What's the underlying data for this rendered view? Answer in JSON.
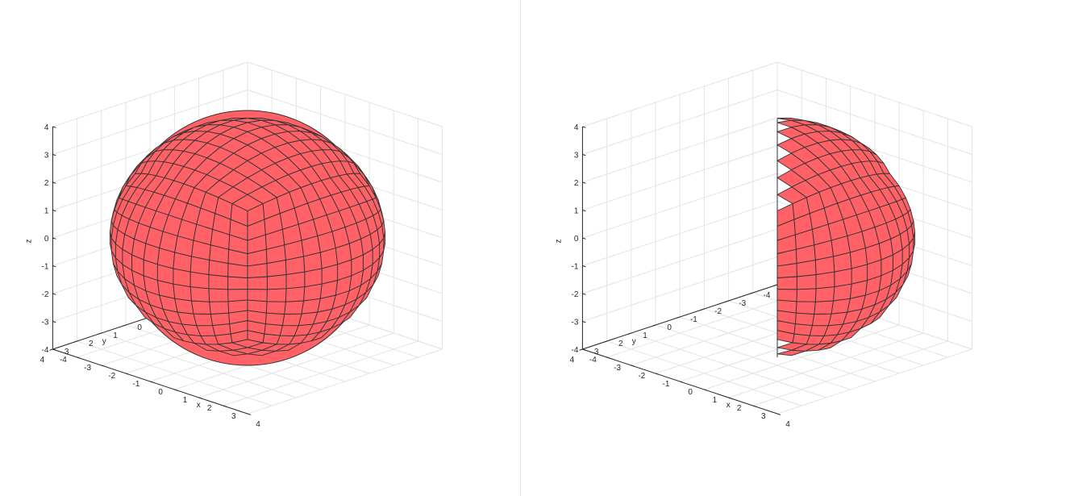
{
  "chart_data": [
    {
      "type": "surface3d",
      "id": "full-sphere",
      "xlabel": "x",
      "ylabel": "y",
      "zlabel": "z",
      "xlim": [
        -4,
        4
      ],
      "ylim": [
        -4,
        4
      ],
      "zlim": [
        -4,
        4
      ],
      "xticks": [
        "-4",
        "-3",
        "-2",
        "-1",
        "0",
        "1",
        "2",
        "3",
        "4"
      ],
      "yticks": [
        "-4",
        "-3",
        "-2",
        "-1",
        "0",
        "1",
        "2",
        "3",
        "4"
      ],
      "zticks": [
        "-4",
        "-3",
        "-2",
        "-1",
        "0",
        "1",
        "2",
        "3",
        "4"
      ],
      "grid": true,
      "shape": "sphere",
      "radius": 4,
      "face_color": "#ff6166",
      "edge_color": "#333333"
    },
    {
      "type": "surface3d",
      "id": "half-sphere-section",
      "xlabel": "x",
      "ylabel": "y",
      "zlabel": "z",
      "xlim": [
        -4,
        4
      ],
      "ylim": [
        -4,
        4
      ],
      "zlim": [
        -4,
        4
      ],
      "xticks": [
        "-4",
        "-3",
        "-2",
        "-1",
        "0",
        "1",
        "2",
        "3",
        "4"
      ],
      "yticks": [
        "-4",
        "-3",
        "-2",
        "-1",
        "0",
        "1",
        "2",
        "3",
        "4"
      ],
      "zticks": [
        "-4",
        "-3",
        "-2",
        "-1",
        "0",
        "1",
        "2",
        "3",
        "4"
      ],
      "grid": true,
      "shape": "hemisphere-cut",
      "radius": 4,
      "face_color": "#ff6166",
      "edge_color": "#333333"
    }
  ],
  "colors": {
    "background": "#ffffff",
    "grid": "#e3e3e3",
    "axis": "#262626"
  }
}
